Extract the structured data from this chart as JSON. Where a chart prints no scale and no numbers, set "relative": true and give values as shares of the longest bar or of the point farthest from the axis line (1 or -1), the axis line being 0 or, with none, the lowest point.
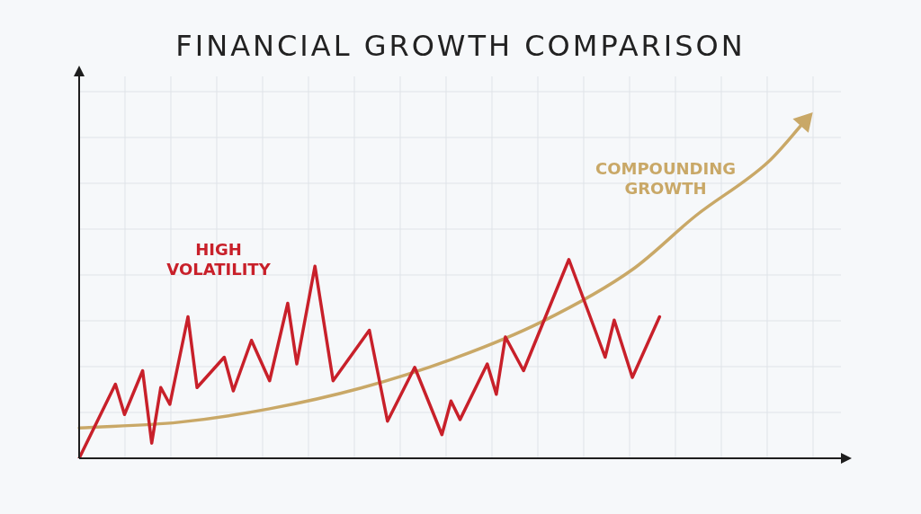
{
  "chart_data": {
    "type": "line",
    "title": "FINANCIAL GROWTH COMPARISON",
    "relative": true,
    "grid": true,
    "marker": "none",
    "line_style": "solid",
    "legend": false,
    "categories": [
      null,
      null,
      null,
      null,
      null,
      null,
      null,
      null,
      null,
      null,
      null,
      null,
      null,
      null,
      null,
      null,
      null,
      null,
      null,
      null,
      null,
      null,
      null,
      null,
      null,
      null,
      null,
      null,
      null,
      null,
      null,
      null,
      null,
      null,
      null,
      null,
      null,
      null,
      null,
      null,
      null,
      null,
      null,
      null,
      null,
      null,
      null,
      null,
      null,
      null,
      null,
      null,
      null,
      null,
      null,
      null,
      null,
      null,
      null,
      null,
      null,
      null,
      null,
      null,
      null,
      null,
      null,
      null,
      null,
      null,
      null,
      null,
      null,
      null,
      null,
      null,
      null,
      null,
      null,
      null,
      null,
      null,
      null,
      null,
      null
    ],
    "series": [
      {
        "name": "HIGH VOLATILITY",
        "color": "#c8202a",
        "values": [
          0,
          null,
          null,
          null,
          0.22,
          0.13,
          null,
          0.26,
          0.045,
          0.21,
          0.16,
          null,
          0.42,
          0.21,
          null,
          null,
          0.3,
          0.2,
          null,
          0.35,
          null,
          0.23,
          null,
          0.46,
          0.28,
          null,
          0.57,
          null,
          0.23,
          null,
          null,
          null,
          0.38,
          null,
          0.11,
          null,
          null,
          0.27,
          null,
          null,
          0.07,
          0.17,
          0.115,
          null,
          null,
          0.28,
          0.19,
          0.36,
          null,
          0.26,
          null,
          null,
          null,
          null,
          0.59,
          null,
          null,
          null,
          0.3,
          0.41,
          null,
          0.24,
          null,
          null,
          0.42,
          null,
          null,
          null,
          null,
          null,
          null,
          null,
          null,
          null,
          null,
          null,
          null,
          null,
          null,
          null,
          null,
          null,
          null,
          null,
          null
        ]
      },
      {
        "name": "COMPOUNDING GROWTH",
        "color": "#c9a867",
        "values": [
          0.09,
          null,
          null,
          null,
          null,
          null,
          null,
          null,
          null,
          null,
          null,
          0.107,
          null,
          null,
          null,
          null,
          null,
          null,
          null,
          null,
          null,
          0.147,
          null,
          null,
          null,
          null,
          null,
          null,
          null,
          null,
          null,
          0.208,
          null,
          null,
          null,
          null,
          null,
          null,
          null,
          null,
          null,
          0.293,
          null,
          null,
          null,
          null,
          null,
          null,
          null,
          null,
          null,
          0.405,
          null,
          null,
          null,
          null,
          null,
          null,
          null,
          null,
          null,
          0.56,
          null,
          null,
          null,
          null,
          null,
          null,
          0.72,
          null,
          null,
          null,
          null,
          null,
          null,
          null,
          0.88,
          null,
          null,
          null,
          1,
          null,
          null,
          null,
          null
        ]
      }
    ]
  }
}
